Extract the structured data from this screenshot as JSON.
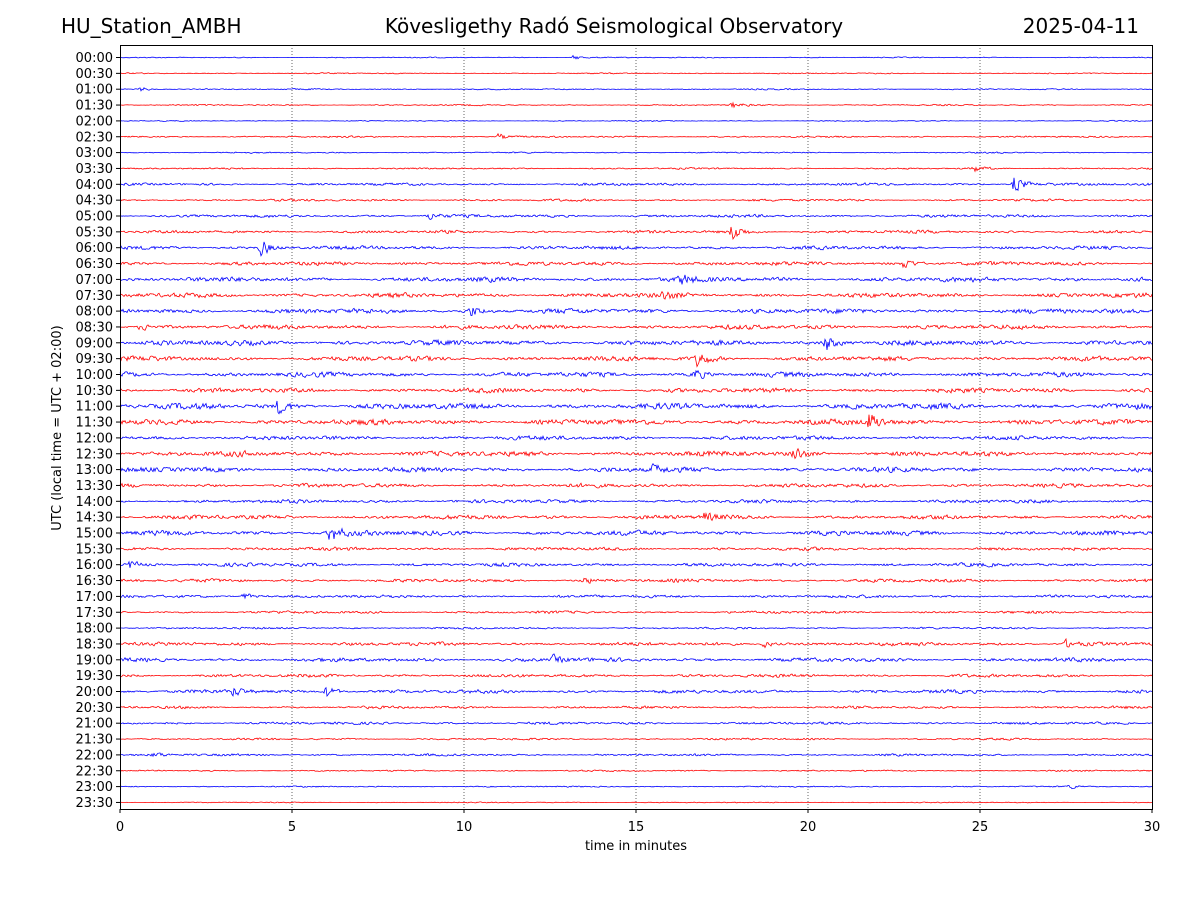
{
  "header": {
    "station": "HU_Station_AMBH",
    "title": "Kövesligethy Radó Seismological Observatory",
    "date": "2025-04-11"
  },
  "chart_data": {
    "type": "line",
    "title": "Kövesligethy Radó Seismological Observatory",
    "xlabel": "time in minutes",
    "ylabel": "UTC (local time = UTC + 02:00)",
    "xlim": [
      0,
      30
    ],
    "xticks": [
      0,
      5,
      10,
      15,
      20,
      25,
      30
    ],
    "grid": "vertical dotted lines at x ticks",
    "row_labels": [
      "00:00",
      "00:30",
      "01:00",
      "01:30",
      "02:00",
      "02:30",
      "03:00",
      "03:30",
      "04:00",
      "04:30",
      "05:00",
      "05:30",
      "06:00",
      "06:30",
      "07:00",
      "07:30",
      "08:00",
      "08:30",
      "09:00",
      "09:30",
      "10:00",
      "10:30",
      "11:00",
      "11:30",
      "12:00",
      "12:30",
      "13:00",
      "13:30",
      "14:00",
      "14:30",
      "15:00",
      "15:30",
      "16:00",
      "16:30",
      "17:00",
      "17:30",
      "18:00",
      "18:30",
      "19:00",
      "19:30",
      "20:00",
      "20:30",
      "21:00",
      "21:30",
      "22:00",
      "22:30",
      "23:00",
      "23:30"
    ],
    "trace_colors": [
      "#0000ff",
      "#ff0000"
    ],
    "noise_level": [
      0.6,
      0.7,
      0.8,
      0.8,
      0.6,
      1.0,
      0.8,
      1.0,
      1.6,
      1.4,
      1.8,
      1.8,
      2.2,
      2.4,
      3.0,
      2.8,
      3.0,
      2.8,
      3.2,
      3.0,
      3.0,
      2.8,
      3.6,
      3.4,
      2.6,
      3.2,
      3.0,
      2.4,
      2.2,
      2.6,
      3.0,
      2.0,
      2.2,
      2.0,
      1.8,
      1.6,
      1.2,
      2.2,
      2.4,
      2.0,
      2.2,
      1.6,
      1.6,
      1.2,
      1.4,
      0.9,
      0.8,
      0.6
    ],
    "events": [
      {
        "row": "00:00",
        "minute": 13.2,
        "amplitude": 3
      },
      {
        "row": "01:00",
        "minute": 0.6,
        "amplitude": 3
      },
      {
        "row": "01:30",
        "minute": 17.8,
        "amplitude": 4
      },
      {
        "row": "02:30",
        "minute": 11.0,
        "amplitude": 4
      },
      {
        "row": "03:30",
        "minute": 24.8,
        "amplitude": 5
      },
      {
        "row": "04:00",
        "minute": 26.0,
        "amplitude": 12
      },
      {
        "row": "05:00",
        "minute": 9.0,
        "amplitude": 5
      },
      {
        "row": "05:30",
        "minute": 17.8,
        "amplitude": 12
      },
      {
        "row": "06:00",
        "minute": 4.1,
        "amplitude": 11
      },
      {
        "row": "06:30",
        "minute": 22.8,
        "amplitude": 7
      },
      {
        "row": "07:00",
        "minute": 16.3,
        "amplitude": 6
      },
      {
        "row": "07:30",
        "minute": 15.8,
        "amplitude": 5
      },
      {
        "row": "08:00",
        "minute": 10.2,
        "amplitude": 7
      },
      {
        "row": "08:30",
        "minute": 0.6,
        "amplitude": 5
      },
      {
        "row": "09:00",
        "minute": 20.5,
        "amplitude": 11
      },
      {
        "row": "09:30",
        "minute": 16.8,
        "amplitude": 11
      },
      {
        "row": "10:00",
        "minute": 16.7,
        "amplitude": 7
      },
      {
        "row": "11:00",
        "minute": 4.6,
        "amplitude": 9
      },
      {
        "row": "11:30",
        "minute": 21.8,
        "amplitude": 13
      },
      {
        "row": "12:30",
        "minute": 19.6,
        "amplitude": 9
      },
      {
        "row": "13:00",
        "minute": 15.5,
        "amplitude": 6
      },
      {
        "row": "14:30",
        "minute": 17.0,
        "amplitude": 6
      },
      {
        "row": "15:00",
        "minute": 6.1,
        "amplitude": 12
      },
      {
        "row": "16:00",
        "minute": 0.3,
        "amplitude": 5
      },
      {
        "row": "16:30",
        "minute": 13.5,
        "amplitude": 4
      },
      {
        "row": "17:00",
        "minute": 3.6,
        "amplitude": 5
      },
      {
        "row": "18:30",
        "minute": 18.7,
        "amplitude": 5
      },
      {
        "row": "18:30",
        "minute": 27.5,
        "amplitude": 5
      },
      {
        "row": "19:00",
        "minute": 12.6,
        "amplitude": 5
      },
      {
        "row": "20:00",
        "minute": 6.0,
        "amplitude": 8
      },
      {
        "row": "20:00",
        "minute": 3.3,
        "amplitude": 6
      },
      {
        "row": "22:00",
        "minute": 1.0,
        "amplitude": 3
      },
      {
        "row": "23:00",
        "minute": 27.6,
        "amplitude": 3
      }
    ]
  }
}
